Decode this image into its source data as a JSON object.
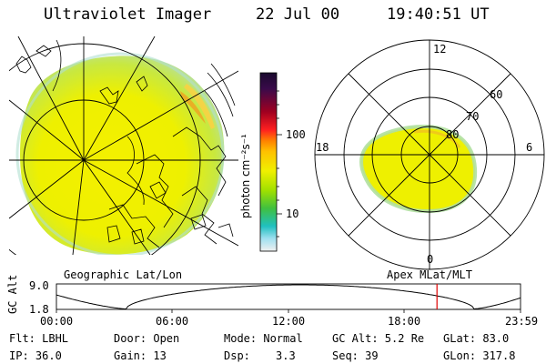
{
  "header": {
    "instrument": "Ultraviolet Imager",
    "date": "22 Jul 00",
    "time": "19:40:51 UT"
  },
  "panels": {
    "left_label": "Geographic Lat/Lon",
    "right_label": "Apex MLat/MLT"
  },
  "colorbar": {
    "unit_label": "photon cm⁻²s⁻¹",
    "tick_100": "100",
    "tick_10": "10",
    "colors": [
      "#1a0a2e",
      "#3a0a4a",
      "#a00020",
      "#ff2020",
      "#ff8000",
      "#ffc000",
      "#f0f000",
      "#a0e000",
      "#40c040",
      "#20c0c0",
      "#a0e0f0",
      "#f0f0f0"
    ]
  },
  "polar": {
    "mlt_12": "12",
    "mlt_18": "18",
    "mlt_6": "6",
    "mlt_0": "0",
    "lat_60": "60",
    "lat_70": "70",
    "lat_80": "80"
  },
  "timeline": {
    "ylabel": "GC Alt",
    "y_max": "9.0",
    "y_min": "1.8",
    "ticks": [
      "00:00",
      "06:00",
      "12:00",
      "18:00",
      "23:59"
    ],
    "current_time_hours": 19.68,
    "marker_color": "#e00000"
  },
  "footer": {
    "flt": "Flt: LBHL",
    "door": "Door: Open",
    "mode": "Mode: Normal",
    "gc_alt": "GC Alt: 5.2 Re",
    "glat": "GLat: 83.0",
    "ip": "IP: 36.0",
    "gain": "Gain: 13",
    "dsp_label": "Dsp:",
    "dsp_value": "3.3",
    "seq": "Seq: 39",
    "glon": "GLon: 317.8"
  }
}
